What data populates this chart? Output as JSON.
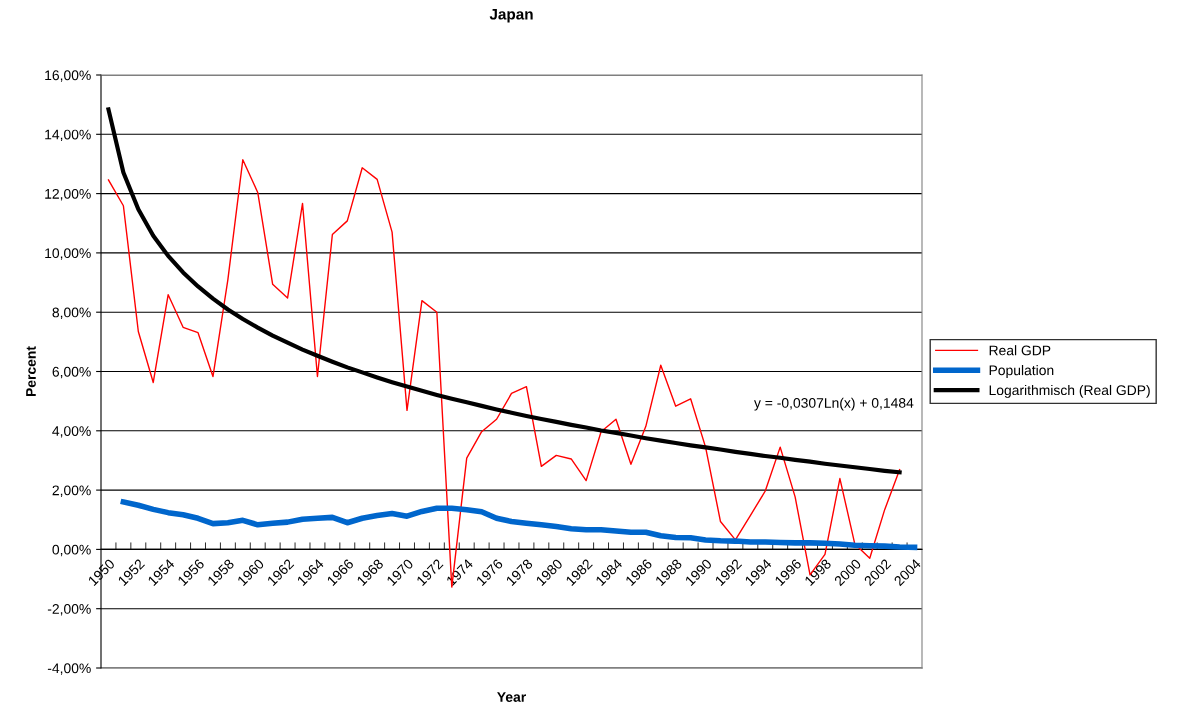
{
  "chart_data": {
    "type": "line",
    "title": "Japan",
    "xlabel": "Year",
    "ylabel": "Percent",
    "categories": [
      "1950",
      null,
      "1952",
      null,
      "1954",
      null,
      "1956",
      null,
      "1958",
      null,
      "1960",
      null,
      "1962",
      null,
      "1964",
      null,
      "1966",
      null,
      "1968",
      null,
      "1970",
      null,
      "1972",
      null,
      "1974",
      null,
      "1976",
      null,
      "1978",
      null,
      "1980",
      null,
      "1982",
      null,
      "1984",
      null,
      "1986",
      null,
      "1988",
      null,
      "1990",
      null,
      "1992",
      null,
      "1994",
      null,
      "1996",
      null,
      "1998",
      null,
      "2000",
      null,
      "2002",
      null,
      "2004"
    ],
    "series": [
      {
        "name": "Real GDP",
        "color": "#ff0000",
        "values": [
          12.46,
          11.59,
          7.35,
          5.63,
          8.59,
          7.49,
          7.31,
          5.83,
          9.1,
          13.14,
          12.04,
          8.94,
          8.48,
          11.67,
          5.83,
          10.62,
          11.08,
          12.87,
          12.48,
          10.7,
          4.69,
          8.39,
          8.0,
          -1.27,
          3.08,
          3.97,
          4.39,
          5.26,
          5.49,
          2.8,
          3.17,
          3.05,
          2.32,
          3.97,
          4.39,
          2.87,
          4.15,
          6.21,
          4.83,
          5.08,
          3.45,
          0.94,
          0.32,
          1.14,
          1.97,
          3.45,
          1.77,
          -0.86,
          -0.17,
          2.39,
          0.18,
          -0.3,
          1.34,
          2.69,
          null
        ]
      },
      {
        "name": "Population",
        "color": "#0066cc",
        "values": [
          null,
          1.6,
          1.49,
          1.35,
          1.24,
          1.17,
          1.05,
          0.87,
          0.9,
          0.98,
          0.83,
          0.88,
          0.92,
          1.02,
          1.05,
          1.08,
          0.9,
          1.05,
          1.14,
          1.21,
          1.12,
          1.28,
          1.39,
          1.39,
          1.34,
          1.27,
          1.05,
          0.94,
          0.88,
          0.83,
          0.77,
          0.7,
          0.66,
          0.66,
          0.62,
          0.58,
          0.58,
          0.46,
          0.4,
          0.39,
          0.32,
          0.29,
          0.28,
          0.25,
          0.25,
          0.23,
          0.22,
          0.22,
          0.21,
          0.18,
          0.14,
          0.12,
          0.11,
          0.08,
          0.07
        ]
      },
      {
        "name": "Logarithmisch (Real GDP)",
        "color": "#000000",
        "values": [
          14.84,
          12.71,
          11.47,
          10.58,
          9.9,
          9.34,
          8.87,
          8.46,
          8.09,
          7.77,
          7.48,
          7.21,
          6.97,
          6.74,
          6.53,
          6.33,
          6.14,
          5.97,
          5.8,
          5.64,
          5.49,
          5.35,
          5.21,
          5.08,
          4.96,
          4.84,
          4.72,
          4.61,
          4.5,
          4.4,
          4.3,
          4.2,
          4.11,
          4.01,
          3.93,
          3.84,
          3.75,
          3.67,
          3.59,
          3.51,
          3.44,
          3.37,
          3.29,
          3.22,
          3.15,
          3.09,
          3.02,
          2.96,
          2.89,
          2.83,
          2.77,
          2.71,
          2.65,
          2.6,
          null
        ]
      }
    ],
    "annotations": [
      "y = -0,0307Ln(x) + 0,1484"
    ],
    "ylim": [
      -4,
      16
    ],
    "yticks": [
      {
        "value": -4,
        "label": "-4,00%"
      },
      {
        "value": -2,
        "label": "-2,00%"
      },
      {
        "value": 0,
        "label": "0,00%"
      },
      {
        "value": 2,
        "label": "2,00%"
      },
      {
        "value": 4,
        "label": "4,00%"
      },
      {
        "value": 6,
        "label": "6,00%"
      },
      {
        "value": 8,
        "label": "8,00%"
      },
      {
        "value": 10,
        "label": "10,00%"
      },
      {
        "value": 12,
        "label": "12,00%"
      },
      {
        "value": 14,
        "label": "14,00%"
      },
      {
        "value": 16,
        "label": "16,00%"
      }
    ],
    "grid": "y",
    "legend": "right",
    "marker": "none",
    "line_style": "solid"
  }
}
